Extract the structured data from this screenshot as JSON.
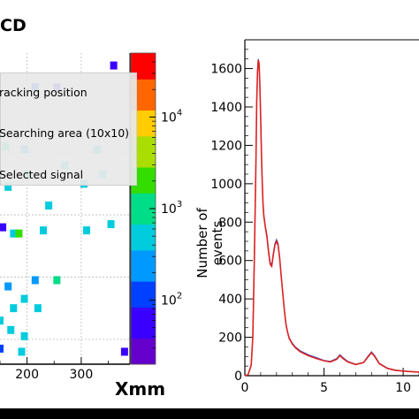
{
  "left_panel": {
    "title": "CD",
    "x_axis_title": "Xmm",
    "x_ticks": [
      "200",
      "300"
    ],
    "colorbar_ticks": [
      {
        "label": "10^4",
        "base": "10",
        "exp": "4"
      },
      {
        "label": "10^3",
        "base": "10",
        "exp": "3"
      },
      {
        "label": "10^2",
        "base": "10",
        "exp": "2"
      }
    ],
    "legend": [
      {
        "label": "racking position"
      },
      {
        "label": "Searching area (10x10)"
      },
      {
        "label": "Selected signal"
      }
    ],
    "hit_color": "#1a1aff",
    "grid": true
  },
  "chart_data": [
    {
      "type": "heatmap",
      "xlabel": "Xmm",
      "x_visible_range": [
        150,
        390
      ],
      "y_visible_range": [
        0,
        100
      ],
      "color_scale": "log",
      "color_range": [
        20,
        50000
      ],
      "colormap": [
        "#6600cc",
        "#3a00ff",
        "#0040ff",
        "#0099ff",
        "#00ccdd",
        "#00dd88",
        "#33dd00",
        "#aadd00",
        "#ffcc00",
        "#ff6600",
        "#ff0000"
      ],
      "cells": [
        {
          "x": 360,
          "y": 96,
          "value": 60
        },
        {
          "x": 255,
          "y": 89,
          "value": 80
        },
        {
          "x": 215,
          "y": 89,
          "value": 150
        },
        {
          "x": 160,
          "y": 70,
          "value": 900
        },
        {
          "x": 195,
          "y": 69,
          "value": 180
        },
        {
          "x": 330,
          "y": 69,
          "value": 700
        },
        {
          "x": 270,
          "y": 64,
          "value": 700
        },
        {
          "x": 200,
          "y": 61,
          "value": 1000
        },
        {
          "x": 165,
          "y": 57,
          "value": 500
        },
        {
          "x": 305,
          "y": 58,
          "value": 400
        },
        {
          "x": 340,
          "y": 61,
          "value": 500
        },
        {
          "x": 155,
          "y": 44,
          "value": 60
        },
        {
          "x": 175,
          "y": 42,
          "value": 600
        },
        {
          "x": 185,
          "y": 42,
          "value": 2000
        },
        {
          "x": 230,
          "y": 43,
          "value": 700
        },
        {
          "x": 310,
          "y": 43,
          "value": 500
        },
        {
          "x": 355,
          "y": 45,
          "value": 500
        },
        {
          "x": 240,
          "y": 51,
          "value": 500
        },
        {
          "x": 165,
          "y": 25,
          "value": 300
        },
        {
          "x": 215,
          "y": 27,
          "value": 200
        },
        {
          "x": 255,
          "y": 27,
          "value": 800
        },
        {
          "x": 175,
          "y": 18,
          "value": 600
        },
        {
          "x": 195,
          "y": 21,
          "value": 700
        },
        {
          "x": 220,
          "y": 18,
          "value": 600
        },
        {
          "x": 150,
          "y": 14,
          "value": 400
        },
        {
          "x": 170,
          "y": 11,
          "value": 500
        },
        {
          "x": 195,
          "y": 9,
          "value": 500
        },
        {
          "x": 150,
          "y": 5,
          "value": 100
        },
        {
          "x": 190,
          "y": 4,
          "value": 500
        },
        {
          "x": 380,
          "y": 4,
          "value": 80
        }
      ]
    },
    {
      "type": "line",
      "xlabel": "",
      "ylabel": "Number of events",
      "ylabel_lines": [
        "Number of",
        "events"
      ],
      "xlim": [
        0,
        11
      ],
      "ylim": [
        0,
        1750
      ],
      "x_ticks": [
        "0",
        "5",
        "10"
      ],
      "y_ticks": [
        "0",
        "200",
        "400",
        "600",
        "800",
        "1000",
        "1200",
        "1400",
        "1600"
      ],
      "series": [
        {
          "color": "#3355cc",
          "points": [
            [
              0,
              0
            ],
            [
              0.2,
              5
            ],
            [
              0.4,
              60
            ],
            [
              0.5,
              210
            ],
            [
              0.6,
              620
            ],
            [
              0.7,
              1120
            ],
            [
              0.75,
              1430
            ],
            [
              0.8,
              1590
            ],
            [
              0.85,
              1650
            ],
            [
              0.9,
              1630
            ],
            [
              0.95,
              1520
            ],
            [
              1.0,
              1350
            ],
            [
              1.05,
              1160
            ],
            [
              1.1,
              1010
            ],
            [
              1.15,
              900
            ],
            [
              1.2,
              840
            ],
            [
              1.3,
              780
            ],
            [
              1.4,
              730
            ],
            [
              1.5,
              650
            ],
            [
              1.6,
              590
            ],
            [
              1.7,
              580
            ],
            [
              1.8,
              640
            ],
            [
              1.9,
              690
            ],
            [
              2.0,
              710
            ],
            [
              2.1,
              690
            ],
            [
              2.2,
              620
            ],
            [
              2.3,
              520
            ],
            [
              2.4,
              430
            ],
            [
              2.5,
              340
            ],
            [
              2.6,
              270
            ],
            [
              2.7,
              230
            ],
            [
              2.8,
              200
            ],
            [
              3.0,
              170
            ],
            [
              3.2,
              150
            ],
            [
              3.5,
              130
            ],
            [
              4.0,
              110
            ],
            [
              4.5,
              95
            ],
            [
              5.0,
              80
            ],
            [
              5.4,
              75
            ],
            [
              5.8,
              90
            ],
            [
              6.0,
              110
            ],
            [
              6.2,
              95
            ],
            [
              6.5,
              75
            ],
            [
              7.0,
              60
            ],
            [
              7.5,
              70
            ],
            [
              7.8,
              105
            ],
            [
              8.0,
              125
            ],
            [
              8.2,
              105
            ],
            [
              8.5,
              65
            ],
            [
              9.0,
              40
            ],
            [
              9.5,
              30
            ],
            [
              10.0,
              25
            ],
            [
              10.5,
              22
            ],
            [
              11.0,
              20
            ]
          ]
        },
        {
          "color": "#dd2222",
          "points": [
            [
              0,
              0
            ],
            [
              0.2,
              5
            ],
            [
              0.4,
              55
            ],
            [
              0.5,
              200
            ],
            [
              0.6,
              600
            ],
            [
              0.7,
              1100
            ],
            [
              0.75,
              1420
            ],
            [
              0.8,
              1580
            ],
            [
              0.85,
              1645
            ],
            [
              0.9,
              1625
            ],
            [
              0.95,
              1510
            ],
            [
              1.0,
              1340
            ],
            [
              1.05,
              1150
            ],
            [
              1.1,
              1000
            ],
            [
              1.15,
              890
            ],
            [
              1.2,
              830
            ],
            [
              1.3,
              770
            ],
            [
              1.4,
              720
            ],
            [
              1.5,
              640
            ],
            [
              1.6,
              580
            ],
            [
              1.7,
              570
            ],
            [
              1.8,
              630
            ],
            [
              1.9,
              680
            ],
            [
              2.0,
              700
            ],
            [
              2.1,
              680
            ],
            [
              2.2,
              610
            ],
            [
              2.3,
              515
            ],
            [
              2.4,
              425
            ],
            [
              2.5,
              335
            ],
            [
              2.6,
              265
            ],
            [
              2.7,
              225
            ],
            [
              2.8,
              195
            ],
            [
              3.0,
              165
            ],
            [
              3.2,
              145
            ],
            [
              3.5,
              125
            ],
            [
              4.0,
              105
            ],
            [
              4.5,
              90
            ],
            [
              5.0,
              78
            ],
            [
              5.4,
              72
            ],
            [
              5.8,
              85
            ],
            [
              6.0,
              105
            ],
            [
              6.2,
              90
            ],
            [
              6.5,
              72
            ],
            [
              7.0,
              58
            ],
            [
              7.5,
              68
            ],
            [
              7.8,
              100
            ],
            [
              8.0,
              120
            ],
            [
              8.2,
              100
            ],
            [
              8.5,
              62
            ],
            [
              9.0,
              38
            ],
            [
              9.5,
              28
            ],
            [
              10.0,
              24
            ],
            [
              10.5,
              21
            ],
            [
              11.0,
              19
            ]
          ]
        }
      ]
    }
  ]
}
